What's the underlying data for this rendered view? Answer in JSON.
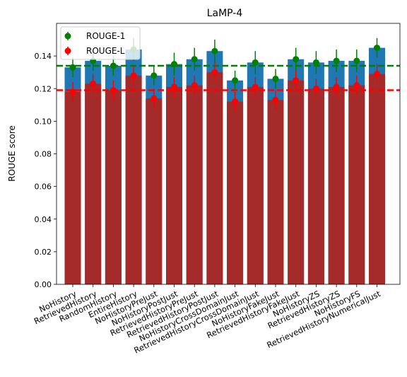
{
  "chart_data": {
    "type": "bar",
    "title": "LaMP-4",
    "xlabel": "",
    "ylabel": "ROUGE score",
    "ylim": [
      0,
      0.16
    ],
    "yticks": [
      0.0,
      0.02,
      0.04,
      0.06,
      0.08,
      0.1,
      0.12,
      0.14
    ],
    "ytick_labels": [
      "0.00",
      "0.02",
      "0.04",
      "0.06",
      "0.08",
      "0.10",
      "0.12",
      "0.14"
    ],
    "grid": false,
    "legend_position": "top-left",
    "categories": [
      "NoHistory",
      "RetrievedHistory",
      "RandomHistory",
      "EntireHistory",
      "NoHistoryPreJust",
      "NoHistoryPostJust",
      "RetrievedHistoryPreJust",
      "RetrievedHistoryPostJust",
      "NoHistoryCrossDomainJust",
      "RetrievedHistoryCrossDomainJust",
      "NoHistoryFakeJust",
      "RetrievedHistoryFakeJust",
      "NoHistoryZS",
      "RetrievedHistoryZS",
      "NoHistoryFS",
      "RetrievedHistoryNumericalJust"
    ],
    "series": [
      {
        "name": "ROUGE-1",
        "color": "#1f77b4",
        "marker_color": "#008000",
        "values": [
          0.133,
          0.137,
          0.134,
          0.144,
          0.128,
          0.135,
          0.138,
          0.143,
          0.125,
          0.136,
          0.126,
          0.138,
          0.136,
          0.137,
          0.137,
          0.145
        ],
        "errors": [
          0.006,
          0.006,
          0.006,
          0.007,
          0.006,
          0.007,
          0.007,
          0.007,
          0.006,
          0.007,
          0.006,
          0.007,
          0.007,
          0.007,
          0.007,
          0.006
        ],
        "mean_line": 0.134
      },
      {
        "name": "ROUGE-L",
        "color": "#a52a2a",
        "marker_color": "#ff0000",
        "values": [
          0.118,
          0.123,
          0.119,
          0.128,
          0.114,
          0.121,
          0.122,
          0.13,
          0.112,
          0.121,
          0.113,
          0.125,
          0.12,
          0.121,
          0.122,
          0.129
        ],
        "errors": [
          0.006,
          0.006,
          0.006,
          0.006,
          0.006,
          0.006,
          0.006,
          0.006,
          0.006,
          0.006,
          0.006,
          0.006,
          0.006,
          0.006,
          0.006,
          0.006
        ],
        "mean_line": 0.119
      }
    ]
  }
}
